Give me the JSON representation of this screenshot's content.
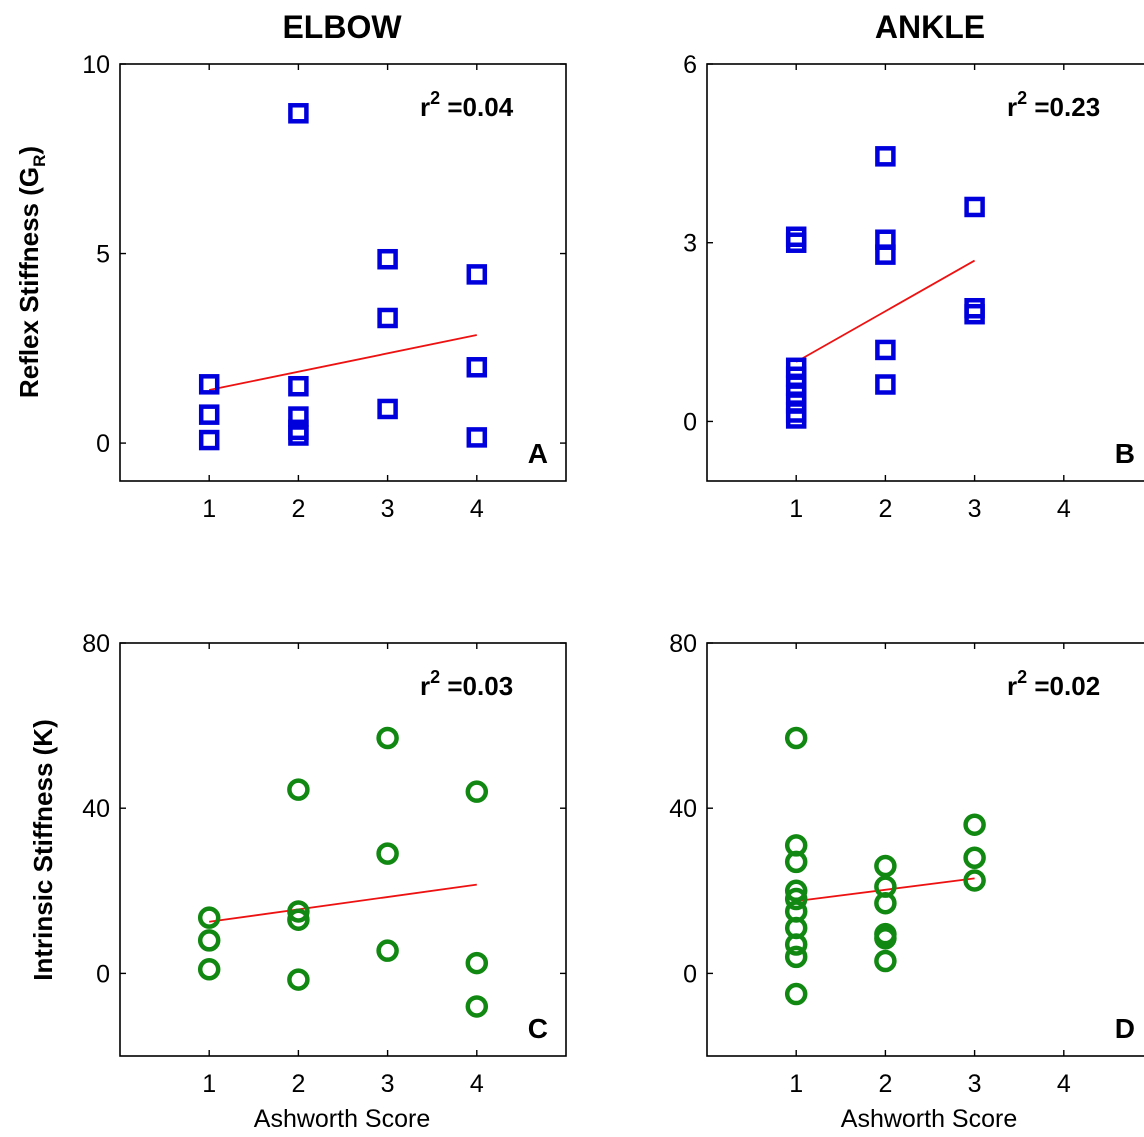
{
  "column_titles": [
    "ELBOW",
    "ANKLE"
  ],
  "row_ylabels": [
    "Reflex Stiffness (G_R)",
    "Intrinsic Stiffness (K)"
  ],
  "xlabel": "Ashworth Score",
  "colors": {
    "squares": "#0000dd",
    "circles": "#118811",
    "fit_line": "#ee1111"
  },
  "chart_data": [
    {
      "type": "scatter",
      "panel_label": "A",
      "column": "ELBOW",
      "ylabel": "Reflex Stiffness (G_R)",
      "r2_text": "=0.04",
      "marker": "square",
      "xlim": [
        0,
        5
      ],
      "ylim": [
        -1,
        10
      ],
      "xticks": [
        1,
        2,
        3,
        4
      ],
      "yticks": [
        0,
        5,
        10
      ],
      "points": [
        {
          "x": 1,
          "y": 1.55
        },
        {
          "x": 1,
          "y": 0.75
        },
        {
          "x": 1,
          "y": 0.08
        },
        {
          "x": 2,
          "y": 8.7
        },
        {
          "x": 2,
          "y": 1.5
        },
        {
          "x": 2,
          "y": 0.7
        },
        {
          "x": 2,
          "y": 0.35
        },
        {
          "x": 2,
          "y": 0.2
        },
        {
          "x": 3,
          "y": 4.85
        },
        {
          "x": 3,
          "y": 3.3
        },
        {
          "x": 3,
          "y": 0.9
        },
        {
          "x": 4,
          "y": 4.45
        },
        {
          "x": 4,
          "y": 2.0
        },
        {
          "x": 4,
          "y": 0.15
        }
      ],
      "fit": {
        "x": [
          1,
          4
        ],
        "y": [
          1.4,
          2.85
        ]
      }
    },
    {
      "type": "scatter",
      "panel_label": "B",
      "column": "ANKLE",
      "ylabel": "",
      "r2_text": "=0.23",
      "marker": "square",
      "xlim": [
        0,
        5
      ],
      "ylim": [
        -1,
        6
      ],
      "xticks": [
        1,
        2,
        3,
        4
      ],
      "yticks": [
        0,
        3,
        6
      ],
      "points": [
        {
          "x": 1,
          "y": 3.1
        },
        {
          "x": 1,
          "y": 3.0
        },
        {
          "x": 1,
          "y": 0.9
        },
        {
          "x": 1,
          "y": 0.75
        },
        {
          "x": 1,
          "y": 0.6
        },
        {
          "x": 1,
          "y": 0.45
        },
        {
          "x": 1,
          "y": 0.3
        },
        {
          "x": 1,
          "y": 0.15
        },
        {
          "x": 1,
          "y": 0.05
        },
        {
          "x": 2,
          "y": 4.45
        },
        {
          "x": 2,
          "y": 3.05
        },
        {
          "x": 2,
          "y": 2.8
        },
        {
          "x": 2,
          "y": 1.2
        },
        {
          "x": 2,
          "y": 0.62
        },
        {
          "x": 3,
          "y": 3.6
        },
        {
          "x": 3,
          "y": 1.9
        },
        {
          "x": 3,
          "y": 1.8
        }
      ],
      "fit": {
        "x": [
          1,
          3
        ],
        "y": [
          1.0,
          2.7
        ]
      }
    },
    {
      "type": "scatter",
      "panel_label": "C",
      "column": "ELBOW",
      "ylabel": "Intrinsic Stiffness (K)",
      "r2_text": "=0.03",
      "marker": "circle",
      "xlim": [
        0,
        5
      ],
      "ylim": [
        -20,
        80
      ],
      "xticks": [
        1,
        2,
        3,
        4
      ],
      "yticks": [
        0,
        40,
        80
      ],
      "points": [
        {
          "x": 1,
          "y": 13.5
        },
        {
          "x": 1,
          "y": 8
        },
        {
          "x": 1,
          "y": 1
        },
        {
          "x": 2,
          "y": 44.5
        },
        {
          "x": 2,
          "y": 15
        },
        {
          "x": 2,
          "y": 13
        },
        {
          "x": 2,
          "y": -1.5
        },
        {
          "x": 3,
          "y": 57
        },
        {
          "x": 3,
          "y": 29
        },
        {
          "x": 3,
          "y": 5.5
        },
        {
          "x": 4,
          "y": 44
        },
        {
          "x": 4,
          "y": 2.5
        },
        {
          "x": 4,
          "y": -8
        }
      ],
      "fit": {
        "x": [
          1,
          4
        ],
        "y": [
          12.5,
          21.5
        ]
      }
    },
    {
      "type": "scatter",
      "panel_label": "D",
      "column": "ANKLE",
      "ylabel": "",
      "r2_text": "=0.02",
      "marker": "circle",
      "xlim": [
        0,
        5
      ],
      "ylim": [
        -20,
        80
      ],
      "xticks": [
        1,
        2,
        3,
        4
      ],
      "yticks": [
        0,
        40,
        80
      ],
      "points": [
        {
          "x": 1,
          "y": 57
        },
        {
          "x": 1,
          "y": 31
        },
        {
          "x": 1,
          "y": 27
        },
        {
          "x": 1,
          "y": 20
        },
        {
          "x": 1,
          "y": 18
        },
        {
          "x": 1,
          "y": 15
        },
        {
          "x": 1,
          "y": 11
        },
        {
          "x": 1,
          "y": 7
        },
        {
          "x": 1,
          "y": 4
        },
        {
          "x": 1,
          "y": -5
        },
        {
          "x": 2,
          "y": 26
        },
        {
          "x": 2,
          "y": 21
        },
        {
          "x": 2,
          "y": 17
        },
        {
          "x": 2,
          "y": 9.5
        },
        {
          "x": 2,
          "y": 8.5
        },
        {
          "x": 2,
          "y": 3
        },
        {
          "x": 3,
          "y": 36
        },
        {
          "x": 3,
          "y": 28
        },
        {
          "x": 3,
          "y": 22.5
        }
      ],
      "fit": {
        "x": [
          1,
          3
        ],
        "y": [
          17.5,
          23
        ]
      }
    }
  ]
}
